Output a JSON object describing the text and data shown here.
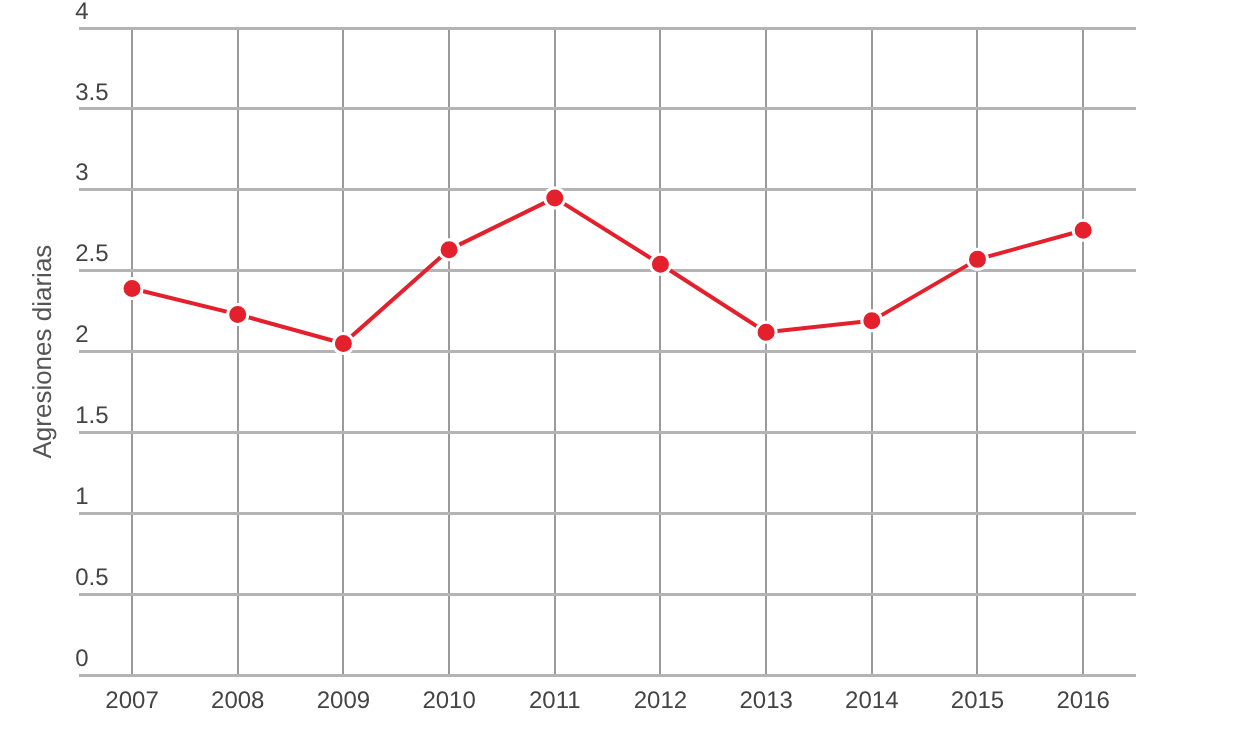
{
  "chart_data": {
    "type": "line",
    "ylabel": "Agresiones diarias",
    "categories": [
      "2007",
      "2008",
      "2009",
      "2010",
      "2011",
      "2012",
      "2013",
      "2014",
      "2015",
      "2016"
    ],
    "series": [
      {
        "color": "#e3202b",
        "values": [
          2.39,
          2.23,
          2.05,
          2.63,
          2.95,
          2.54,
          2.12,
          2.19,
          2.57,
          2.75
        ]
      }
    ],
    "ylim": [
      0,
      4
    ],
    "yticks": [
      0,
      0.5,
      1,
      1.5,
      2,
      2.5,
      3,
      3.5,
      4
    ],
    "grid": true,
    "legend": false,
    "marker": "circle",
    "line_style": "solid"
  }
}
